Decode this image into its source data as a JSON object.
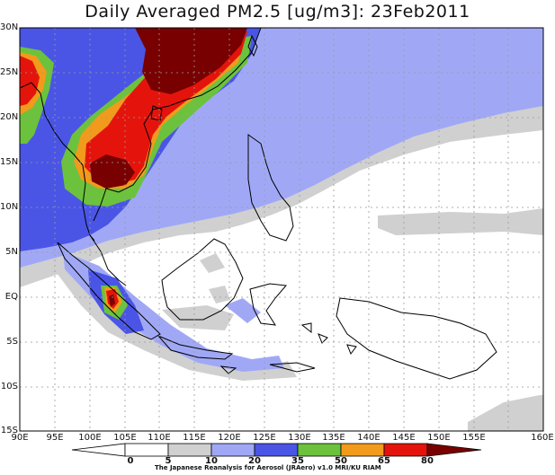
{
  "title": "Daily Averaged PM2.5 [ug/m3]: 23Feb2011",
  "lat_labels": [
    "30N",
    "25N",
    "20N",
    "15N",
    "10N",
    "5N",
    "EQ",
    "5S",
    "10S",
    "15S"
  ],
  "lon_labels": [
    "90E",
    "95E",
    "100E",
    "105E",
    "110E",
    "115E",
    "120E",
    "125E",
    "130E",
    "135E",
    "140E",
    "145E",
    "150E",
    "155E",
    "160E"
  ],
  "colorbar": {
    "levels": [
      "0",
      "5",
      "10",
      "20",
      "35",
      "50",
      "65",
      "80"
    ],
    "colors": [
      "#ffffff",
      "#d0d0d0",
      "#a0a8f6",
      "#4a55e6",
      "#6cc23c",
      "#f29a1c",
      "#e4140c",
      "#780000"
    ]
  },
  "credit": "The Japanese Reanalysis for Aerosol (JRAero) v1.0 MRI/KU RIAM",
  "palette": {
    "gray": "#d0d0d0",
    "lightblue": "#a0a8f6",
    "blue": "#4a55e6",
    "green": "#6cc23c",
    "orange": "#f29a1c",
    "red": "#e4140c",
    "darkred": "#780000"
  }
}
